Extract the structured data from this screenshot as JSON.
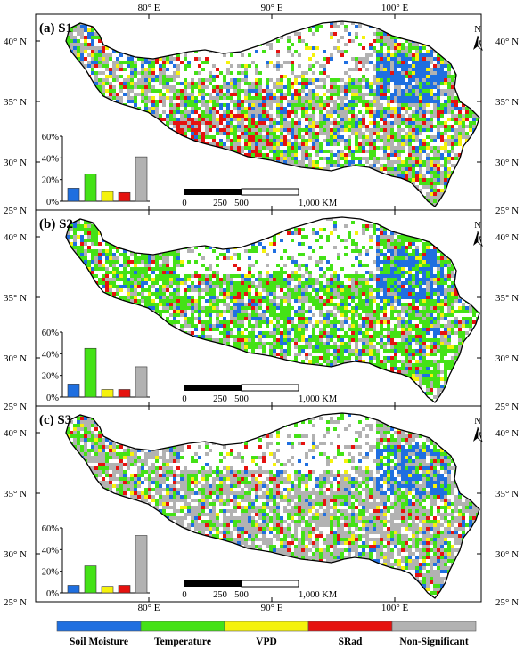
{
  "top_axis_labels": [
    "80° E",
    "90° E",
    "100° E"
  ],
  "bottom_axis_labels": [
    "80° E",
    "90° E",
    "100° E"
  ],
  "lat_labels": [
    "40° N",
    "35° N",
    "30° N",
    "25° N"
  ],
  "north_label": "N",
  "scale_labels": [
    "0",
    "250",
    "500",
    "1,000 KM"
  ],
  "bar_tick_labels": [
    "60%",
    "40%",
    "20%",
    "0%"
  ],
  "categories": [
    "Soil Moisture",
    "Temperature",
    "VPD",
    "SRad",
    "Non-Significant"
  ],
  "colors": {
    "Soil Moisture": "#1f6fe0",
    "Temperature": "#44e216",
    "VPD": "#f5f20c",
    "SRad": "#e5120f",
    "Non-Significant": "#b2b2b2"
  },
  "panels": [
    {
      "title": "(a) S1"
    },
    {
      "title": "(b) S2"
    },
    {
      "title": "(c) S3"
    }
  ],
  "chart_data": [
    {
      "type": "bar",
      "categories": [
        "Soil Moisture",
        "Temperature",
        "VPD",
        "SRad",
        "Non-Significant"
      ],
      "values": [
        12,
        25,
        9,
        8,
        41
      ],
      "ylim": [
        0,
        60
      ],
      "yticks": [
        "0%",
        "20%",
        "40%",
        "60%"
      ],
      "grid": false
    },
    {
      "type": "bar",
      "categories": [
        "Soil Moisture",
        "Temperature",
        "VPD",
        "SRad",
        "Non-Significant"
      ],
      "values": [
        12,
        45,
        7,
        7,
        28
      ],
      "ylim": [
        0,
        60
      ],
      "yticks": [
        "0%",
        "20%",
        "40%",
        "60%"
      ],
      "grid": false
    },
    {
      "type": "bar",
      "categories": [
        "Soil Moisture",
        "Temperature",
        "VPD",
        "SRad",
        "Non-Significant"
      ],
      "values": [
        7,
        25,
        6,
        7,
        53
      ],
      "ylim": [
        0,
        60
      ],
      "yticks": [
        "0%",
        "20%",
        "40%",
        "60%"
      ],
      "grid": false
    }
  ]
}
